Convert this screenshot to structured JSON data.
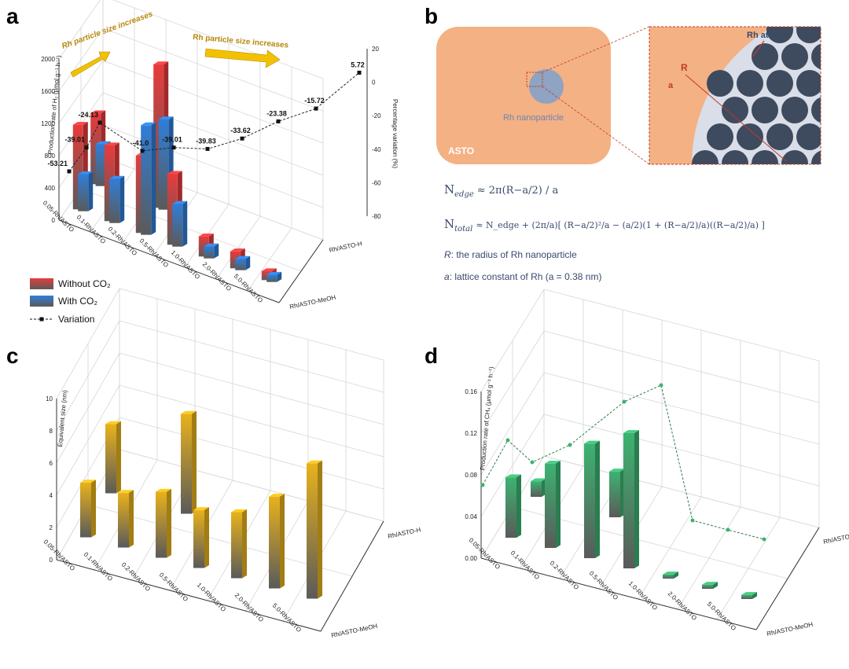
{
  "panel_labels": {
    "a": "a",
    "b": "b",
    "c": "c",
    "d": "d"
  },
  "chart_data": [
    {
      "id": "a",
      "type": "bar",
      "categories": [
        "0.05-Rh/ASTO",
        "0.1-Rh/ASTO",
        "0.2-Rh/ASTO",
        "0.5-Rh/ASTO",
        "1.0-Rh/ASTO",
        "2.0-Rh/ASTO",
        "5.0-Rh/ASTO"
      ],
      "depth_labels": [
        "Rh/ASTO-H",
        "",
        "Rh/ASTO-MeOH"
      ],
      "ylabel": "Production rate of H₂ (μmol g⁻¹ h⁻¹)",
      "y2label": "Percentage variation (%)",
      "ylim": [
        0,
        2000
      ],
      "yticks": [
        "0",
        "400",
        "800",
        "1200",
        "1600",
        "2000"
      ],
      "y2lim": [
        -80,
        20
      ],
      "y2ticks": [
        "-80",
        "-60",
        "-40",
        "-20",
        "0",
        "20"
      ],
      "series": [
        {
          "name": "Without CO₂",
          "color": "#e83b3b",
          "front": [
            1050,
            940,
            960,
            880,
            250,
            210,
            110
          ],
          "back": [
            880,
            null,
            1780,
            null,
            null,
            null,
            null
          ]
        },
        {
          "name": "With CO₂",
          "color": "#2f7ed8",
          "front": [
            460,
            550,
            1360,
            530,
            150,
            140,
            90
          ],
          "back": [
            520,
            null,
            1120,
            null,
            null,
            null,
            null
          ]
        }
      ],
      "variation": {
        "name": "Variation",
        "values": [
          -53.21,
          -39.01,
          -24.13,
          -41.0,
          -39.01,
          -39.83,
          -33.62,
          -23.38,
          -15.72,
          5.72
        ],
        "labels": [
          "-53.21",
          "-39.01",
          "-24.13",
          "-41.0",
          "-39.01",
          "-39.83",
          "-33.62",
          "-23.38",
          "-15.72",
          "5.72"
        ]
      },
      "annotations": [
        "Rh particle size increases",
        "Rh particle size increases"
      ],
      "legend": [
        "Without CO₂",
        "With CO₂",
        "Variation"
      ]
    },
    {
      "id": "c",
      "type": "bar",
      "categories": [
        "0.05-Rh/ASTO",
        "0.1-Rh/ASTO",
        "0.2-Rh/ASTO",
        "0.5-Rh/ASTO",
        "1.0-Rh/ASTO",
        "2.0-Rh/ASTO",
        "5.0-Rh/ASTO"
      ],
      "depth_labels": [
        "Rh/ASTO-H",
        "",
        "Rh/ASTO-MeOH"
      ],
      "ylabel": "Equivalent size (nm)",
      "ylim": [
        0,
        10
      ],
      "yticks": [
        "0",
        "2",
        "4",
        "6",
        "8",
        "10"
      ],
      "series": [
        {
          "name": "",
          "color": "#e8b21c",
          "front": [
            3.4,
            3.4,
            4.1,
            3.6,
            4.1,
            5.7,
            8.4
          ],
          "back": [
            4.3,
            null,
            6.2,
            null,
            null,
            null,
            null
          ]
        }
      ]
    },
    {
      "id": "d",
      "type": "bar",
      "categories": [
        "0.05-Rh/ASTO",
        "0.1-Rh/ASTO",
        "0.2-Rh/ASTO",
        "0.5-Rh/ASTO",
        "1.0-Rh/ASTO",
        "2.0-Rh/ASTO",
        "5.0-Rh/ASTO"
      ],
      "depth_labels": [
        "Rh/ASTO-H",
        "",
        "Rh/ASTO-MeOH"
      ],
      "ylabel": "Production rate of CH₄ (μmol g⁻¹ h⁻¹)",
      "ylim": [
        0,
        0.16
      ],
      "yticks": [
        "0.00",
        "0.04",
        "0.08",
        "0.12",
        "0.16"
      ],
      "series": [
        {
          "name": "",
          "color": "#3cb371",
          "front": [
            0.058,
            0.081,
            0.11,
            0.13,
            0.004,
            0.004,
            0.004
          ],
          "back": [
            0.015,
            null,
            0.044,
            null,
            null,
            null,
            null
          ]
        }
      ],
      "line": [
        0.07,
        0.102,
        0.082,
        0.105,
        0.145,
        0.155,
        0.155,
        0.035,
        0.025,
        0.02
      ]
    }
  ],
  "panel_b": {
    "support_label": "ASTO",
    "particle_label": "Rh nanoparticle",
    "atom_label": "Rh atom",
    "R_label": "R",
    "a_label": "a",
    "eq1_lhs": "N",
    "eq1_sub": "edge",
    "eq1_rhs": "≈ 2π(R−a/2) / a",
    "eq2_lhs": "N",
    "eq2_sub": "total",
    "eq2_rhs": "≈ N_edge + (2π/a)[ (R−a/2)²/a − (a/2)(1 + (R−a/2)/a)((R−a/2)/a) ]",
    "note1_var": "R",
    "note1": ": the radius of Rh nanoparticle",
    "note2_var": "a",
    "note2": ": lattice constant of Rh (a = 0.38 nm)"
  }
}
